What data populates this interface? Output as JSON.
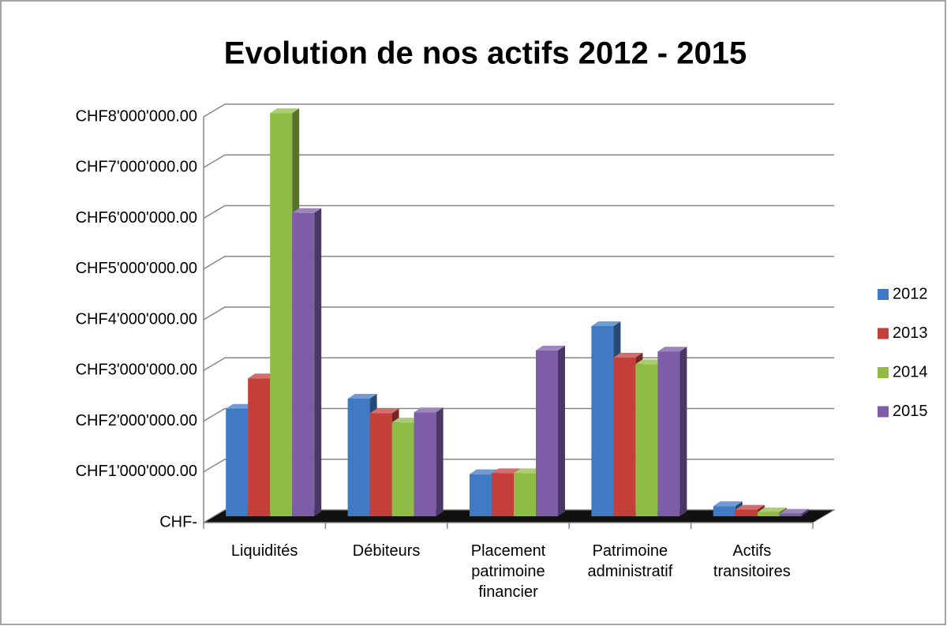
{
  "chart_data": {
    "type": "bar3d",
    "title": "Evolution de nos actifs 2012 - 2015",
    "categories": [
      "Liquidités",
      "Débiteurs",
      "Placement patrimoine financier",
      "Patrimoine administratif",
      "Actifs transitoires"
    ],
    "series": [
      {
        "name": "2012",
        "color": "#4079c4",
        "values": [
          2120000,
          2320000,
          830000,
          3750000,
          200000
        ]
      },
      {
        "name": "2013",
        "color": "#c43e3a",
        "values": [
          2720000,
          2030000,
          850000,
          3130000,
          130000
        ]
      },
      {
        "name": "2014",
        "color": "#8fbc45",
        "values": [
          7950000,
          1850000,
          850000,
          3000000,
          80000
        ]
      },
      {
        "name": "2015",
        "color": "#7d5ca8",
        "values": [
          5980000,
          2050000,
          3270000,
          3250000,
          50000
        ]
      }
    ],
    "ylim": [
      0,
      8000000
    ],
    "yticks": [
      {
        "value": 0,
        "label": "CHF-"
      },
      {
        "value": 1000000,
        "label": "CHF1'000'000.00"
      },
      {
        "value": 2000000,
        "label": "CHF2'000'000.00"
      },
      {
        "value": 3000000,
        "label": "CHF3'000'000.00"
      },
      {
        "value": 4000000,
        "label": "CHF4'000'000.00"
      },
      {
        "value": 5000000,
        "label": "CHF5'000'000.00"
      },
      {
        "value": 6000000,
        "label": "CHF6'000'000.00"
      },
      {
        "value": 7000000,
        "label": "CHF7'000'000.00"
      },
      {
        "value": 8000000,
        "label": "CHF8'000'000.00"
      }
    ],
    "grid": true,
    "legend": "right"
  }
}
